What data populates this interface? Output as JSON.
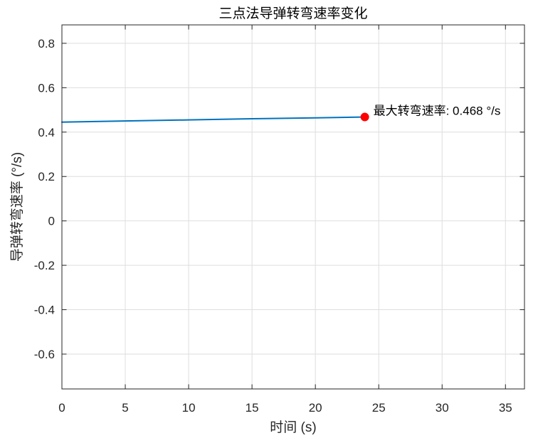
{
  "chart_data": {
    "type": "line",
    "title": "三点法导弹转弯速率变化",
    "xlabel": "时间 (s)",
    "ylabel": "导弹转弯速率 (°/s)",
    "xlim": [
      0,
      36.5
    ],
    "ylim": [
      -0.757,
      0.883
    ],
    "xticks": [
      0,
      5,
      10,
      15,
      20,
      25,
      30,
      35
    ],
    "xtick_labels": [
      "0",
      "5",
      "10",
      "15",
      "20",
      "25",
      "30",
      "35"
    ],
    "yticks": [
      -0.6,
      -0.4,
      -0.2,
      0,
      0.2,
      0.4,
      0.6,
      0.8
    ],
    "ytick_labels": [
      "-0.6",
      "-0.4",
      "-0.2",
      "0",
      "0.2",
      "0.4",
      "0.6",
      "0.8"
    ],
    "grid": true,
    "series": [
      {
        "x": [
          0,
          5,
          10,
          15,
          20,
          23.9
        ],
        "y": [
          0.445,
          0.45,
          0.455,
          0.46,
          0.464,
          0.468
        ],
        "color": "#0072BD"
      }
    ],
    "max_point": {
      "x": 23.9,
      "y": 0.468,
      "color": "#FF0000"
    },
    "annotation": "最大转弯速率: 0.468 °/s"
  }
}
